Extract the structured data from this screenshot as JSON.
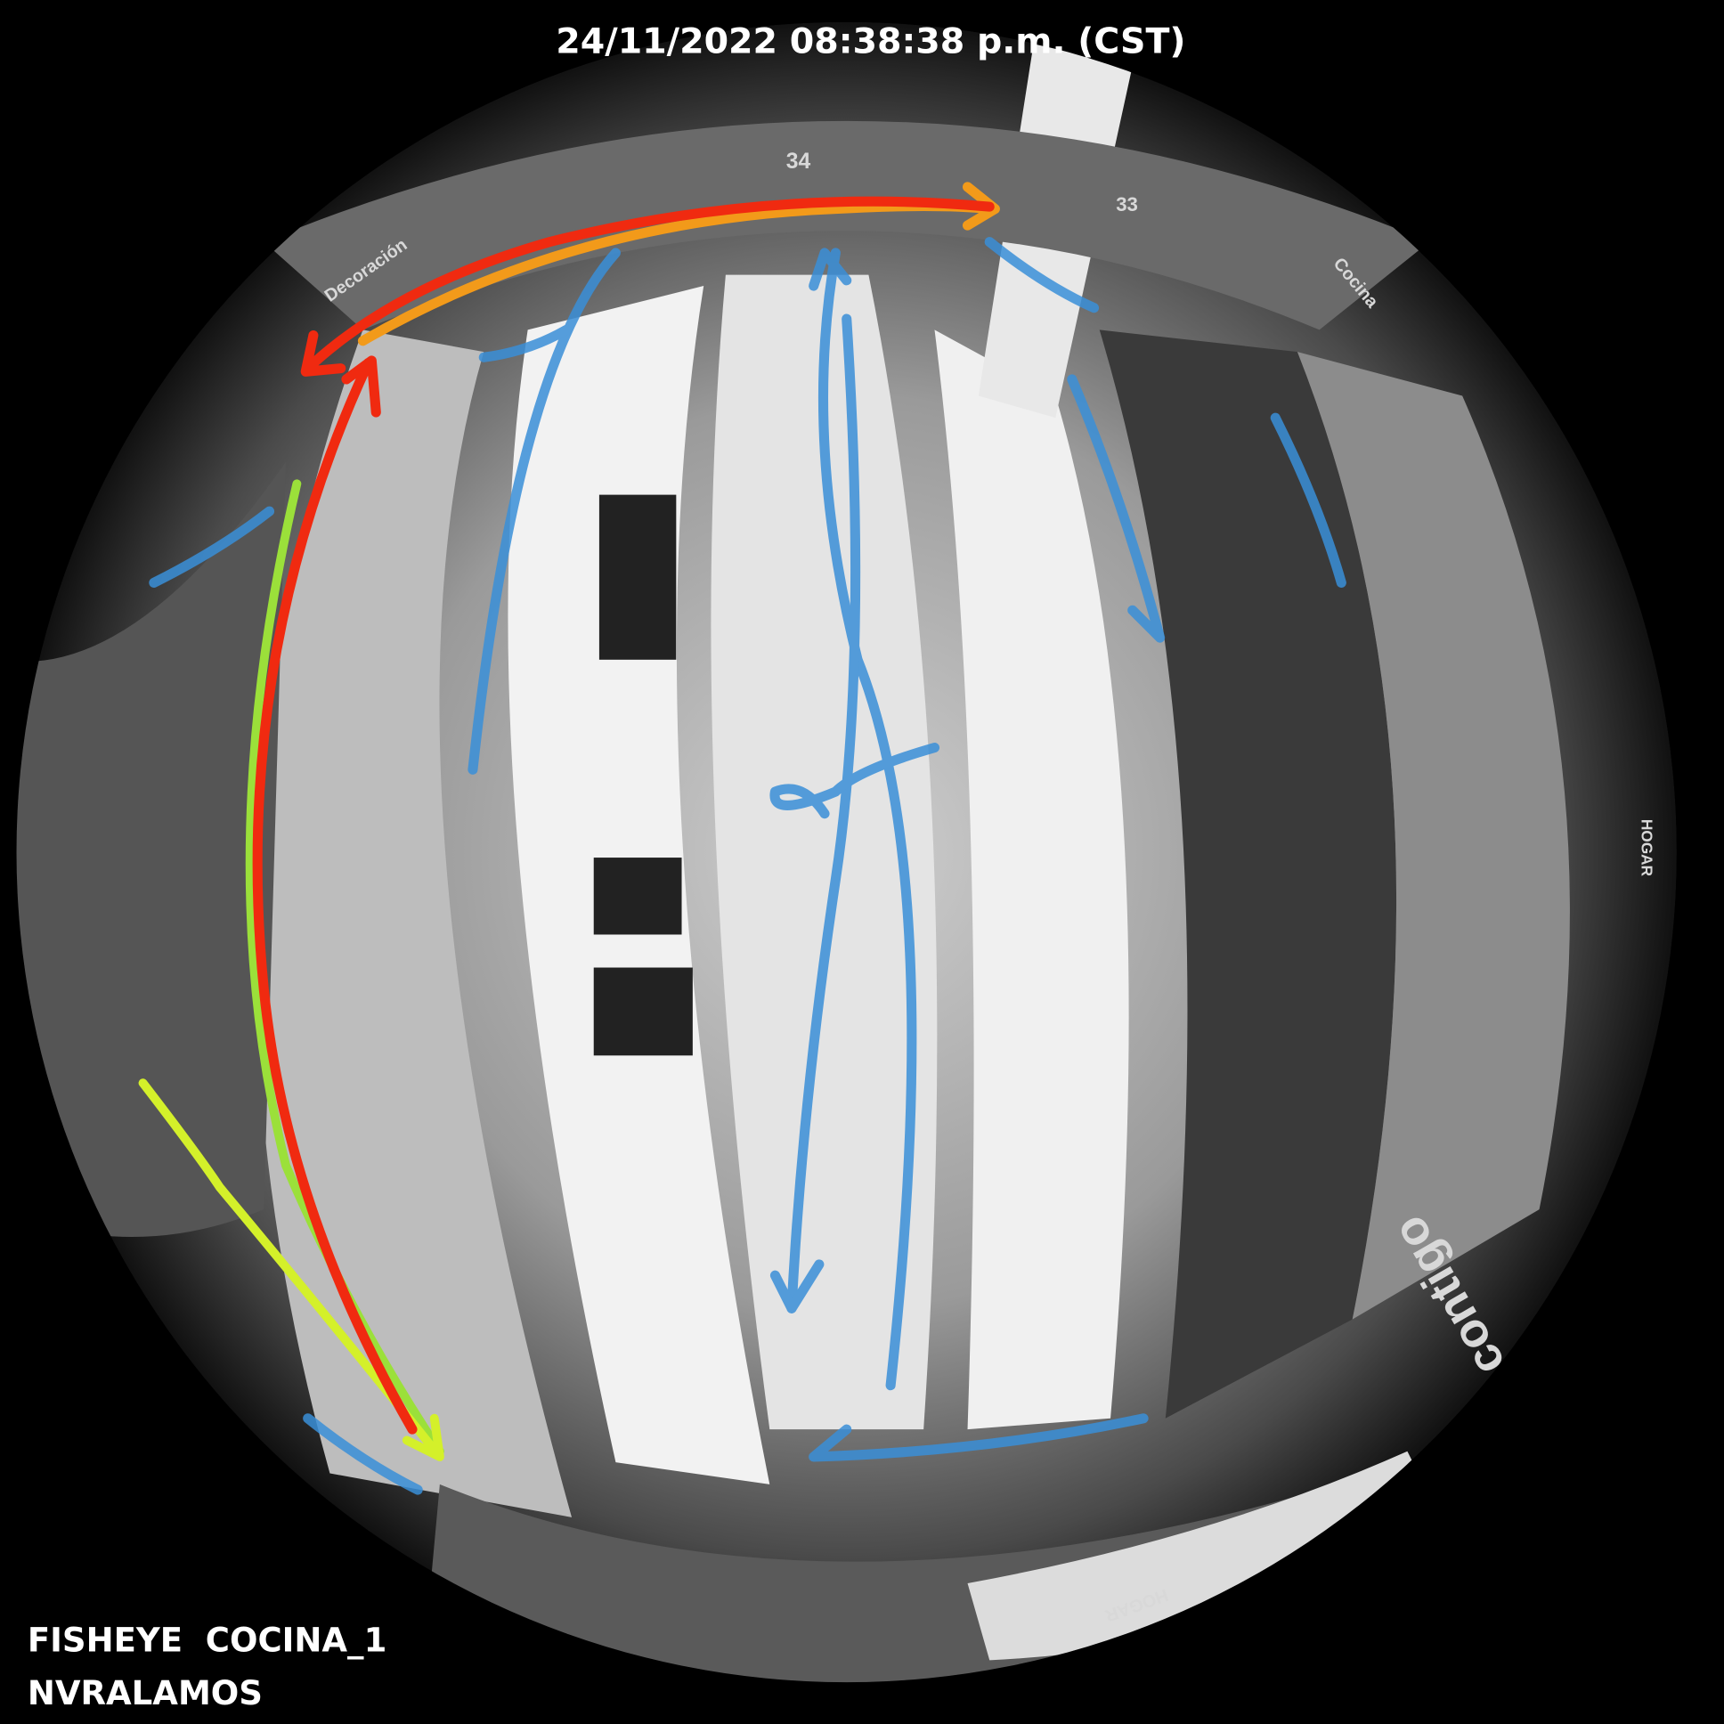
{
  "overlay": {
    "timestamp": "24/11/2022 08:38:38 p.m. (CST)",
    "camera": "FISHEYE  COCINA_1",
    "recorder": "NVRALAMOS"
  },
  "scene_signs": {
    "aisle_left": "34",
    "aisle_right": "33",
    "decor": "Decoración",
    "kitchen": "Cocina",
    "home_bottom": "HOGAR",
    "home_right": "HOGAR",
    "brand": "contigo"
  }
}
